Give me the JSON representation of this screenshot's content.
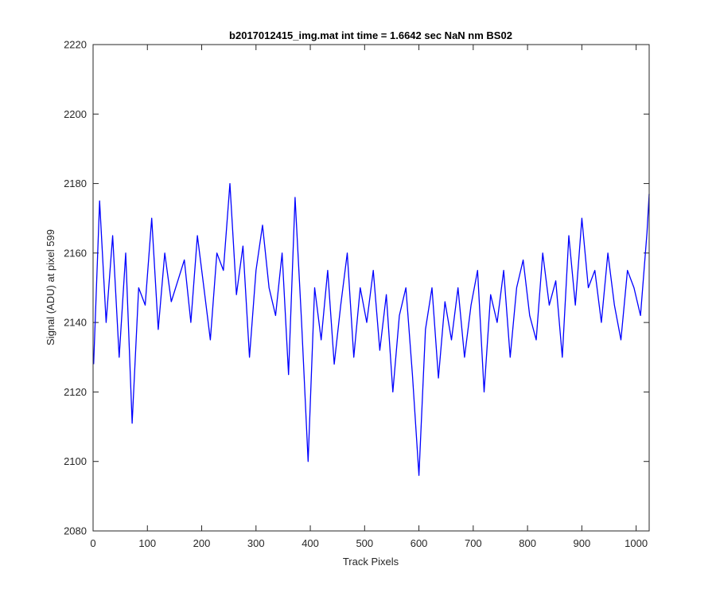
{
  "chart_data": {
    "type": "line",
    "title": "b2017012415_img.mat int time = 1.6642 sec  NaN nm BS02",
    "xlabel": "Track Pixels",
    "ylabel": "Signal (ADU) at pixel 599",
    "xlim": [
      0,
      1024
    ],
    "ylim": [
      2080,
      2220
    ],
    "xticks": [
      0,
      100,
      200,
      300,
      400,
      500,
      600,
      700,
      800,
      900,
      1000
    ],
    "yticks": [
      2080,
      2100,
      2120,
      2140,
      2160,
      2180,
      2200,
      2220
    ],
    "grid": false,
    "line_color": "#0000ff",
    "series": [
      {
        "x": [
          1,
          12,
          24,
          36,
          48,
          60,
          72,
          84,
          96,
          108,
          120,
          132,
          144,
          156,
          168,
          180,
          192,
          204,
          216,
          228,
          240,
          252,
          264,
          276,
          288,
          300,
          312,
          324,
          336,
          348,
          360,
          372,
          384,
          396,
          408,
          420,
          432,
          444,
          456,
          468,
          480,
          492,
          504,
          516,
          528,
          540,
          552,
          564,
          576,
          588,
          600,
          612,
          624,
          636,
          648,
          660,
          672,
          684,
          696,
          708,
          720,
          732,
          744,
          756,
          768,
          780,
          792,
          804,
          816,
          828,
          840,
          852,
          864,
          876,
          888,
          900,
          912,
          924,
          936,
          948,
          960,
          972,
          984,
          996,
          1008,
          1020,
          1024
        ],
        "values": [
          2128,
          2175,
          2140,
          2165,
          2130,
          2160,
          2111,
          2150,
          2145,
          2170,
          2138,
          2160,
          2146,
          2152,
          2158,
          2140,
          2165,
          2150,
          2135,
          2160,
          2155,
          2180,
          2148,
          2162,
          2130,
          2155,
          2168,
          2150,
          2142,
          2160,
          2125,
          2176,
          2140,
          2100,
          2150,
          2135,
          2155,
          2128,
          2145,
          2160,
          2130,
          2150,
          2140,
          2155,
          2132,
          2148,
          2120,
          2142,
          2150,
          2125,
          2096,
          2138,
          2150,
          2124,
          2146,
          2135,
          2150,
          2130,
          2145,
          2155,
          2120,
          2148,
          2140,
          2155,
          2130,
          2150,
          2158,
          2142,
          2135,
          2160,
          2145,
          2152,
          2130,
          2165,
          2145,
          2170,
          2150,
          2155,
          2140,
          2160,
          2145,
          2135,
          2155,
          2150,
          2142,
          2166,
          2177
        ]
      }
    ]
  }
}
